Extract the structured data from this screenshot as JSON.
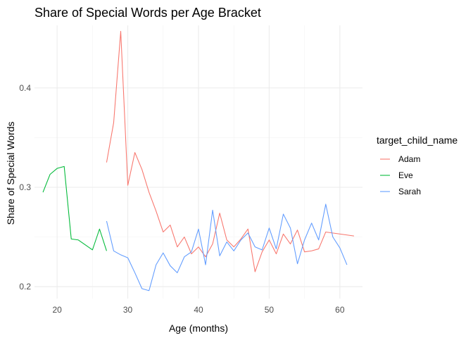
{
  "chart_data": {
    "type": "line",
    "title": "Share of Special Words per Age Bracket",
    "xlabel": "Age (months)",
    "ylabel": "Share of Special Words",
    "xlim": [
      16.8,
      63.2
    ],
    "ylim": [
      0.188,
      0.463
    ],
    "xticks": [
      20,
      30,
      40,
      50,
      60
    ],
    "yticks": [
      0.2,
      0.3,
      0.4
    ],
    "ytick_labels": [
      "0.2",
      "0.3",
      "0.4"
    ],
    "grid": true,
    "legend_title": "target_child_name",
    "legend_position": "right",
    "series": [
      {
        "name": "Adam",
        "color": "#F8766D",
        "points": [
          [
            27,
            0.325
          ],
          [
            28,
            0.365
          ],
          [
            29,
            0.457
          ],
          [
            30,
            0.302
          ],
          [
            31,
            0.335
          ],
          [
            32,
            0.318
          ],
          [
            33,
            0.295
          ],
          [
            34,
            0.276
          ],
          [
            35,
            0.255
          ],
          [
            36,
            0.262
          ],
          [
            37,
            0.24
          ],
          [
            38,
            0.25
          ],
          [
            39,
            0.233
          ],
          [
            40,
            0.24
          ],
          [
            41,
            0.23
          ],
          [
            42,
            0.243
          ],
          [
            43,
            0.274
          ],
          [
            44,
            0.247
          ],
          [
            45,
            0.24
          ],
          [
            46,
            0.248
          ],
          [
            47,
            0.258
          ],
          [
            48,
            0.215
          ],
          [
            49,
            0.235
          ],
          [
            50,
            0.247
          ],
          [
            51,
            0.233
          ],
          [
            52,
            0.253
          ],
          [
            53,
            0.243
          ],
          [
            54,
            0.257
          ],
          [
            55,
            0.235
          ],
          [
            56,
            0.236
          ],
          [
            57,
            0.238
          ],
          [
            58,
            0.255
          ],
          [
            62,
            0.251
          ]
        ]
      },
      {
        "name": "Eve",
        "color": "#00BA38",
        "points": [
          [
            18,
            0.295
          ],
          [
            19,
            0.313
          ],
          [
            20,
            0.319
          ],
          [
            21,
            0.321
          ],
          [
            22,
            0.248
          ],
          [
            23,
            0.247
          ],
          [
            24,
            0.242
          ],
          [
            25,
            0.237
          ],
          [
            26,
            0.258
          ],
          [
            27,
            0.236
          ]
        ]
      },
      {
        "name": "Sarah",
        "color": "#619CFF",
        "points": [
          [
            27,
            0.266
          ],
          [
            28,
            0.236
          ],
          [
            29,
            0.232
          ],
          [
            30,
            0.229
          ],
          [
            31,
            0.214
          ],
          [
            32,
            0.198
          ],
          [
            33,
            0.196
          ],
          [
            34,
            0.222
          ],
          [
            35,
            0.234
          ],
          [
            36,
            0.221
          ],
          [
            37,
            0.214
          ],
          [
            38,
            0.23
          ],
          [
            39,
            0.235
          ],
          [
            40,
            0.258
          ],
          [
            41,
            0.222
          ],
          [
            42,
            0.277
          ],
          [
            43,
            0.231
          ],
          [
            44,
            0.245
          ],
          [
            45,
            0.236
          ],
          [
            46,
            0.247
          ],
          [
            47,
            0.254
          ],
          [
            48,
            0.24
          ],
          [
            49,
            0.237
          ],
          [
            50,
            0.259
          ],
          [
            51,
            0.238
          ],
          [
            52,
            0.273
          ],
          [
            53,
            0.259
          ],
          [
            54,
            0.223
          ],
          [
            55,
            0.247
          ],
          [
            56,
            0.264
          ],
          [
            57,
            0.247
          ],
          [
            58,
            0.283
          ],
          [
            59,
            0.25
          ],
          [
            60,
            0.239
          ],
          [
            61,
            0.222
          ]
        ]
      }
    ]
  }
}
